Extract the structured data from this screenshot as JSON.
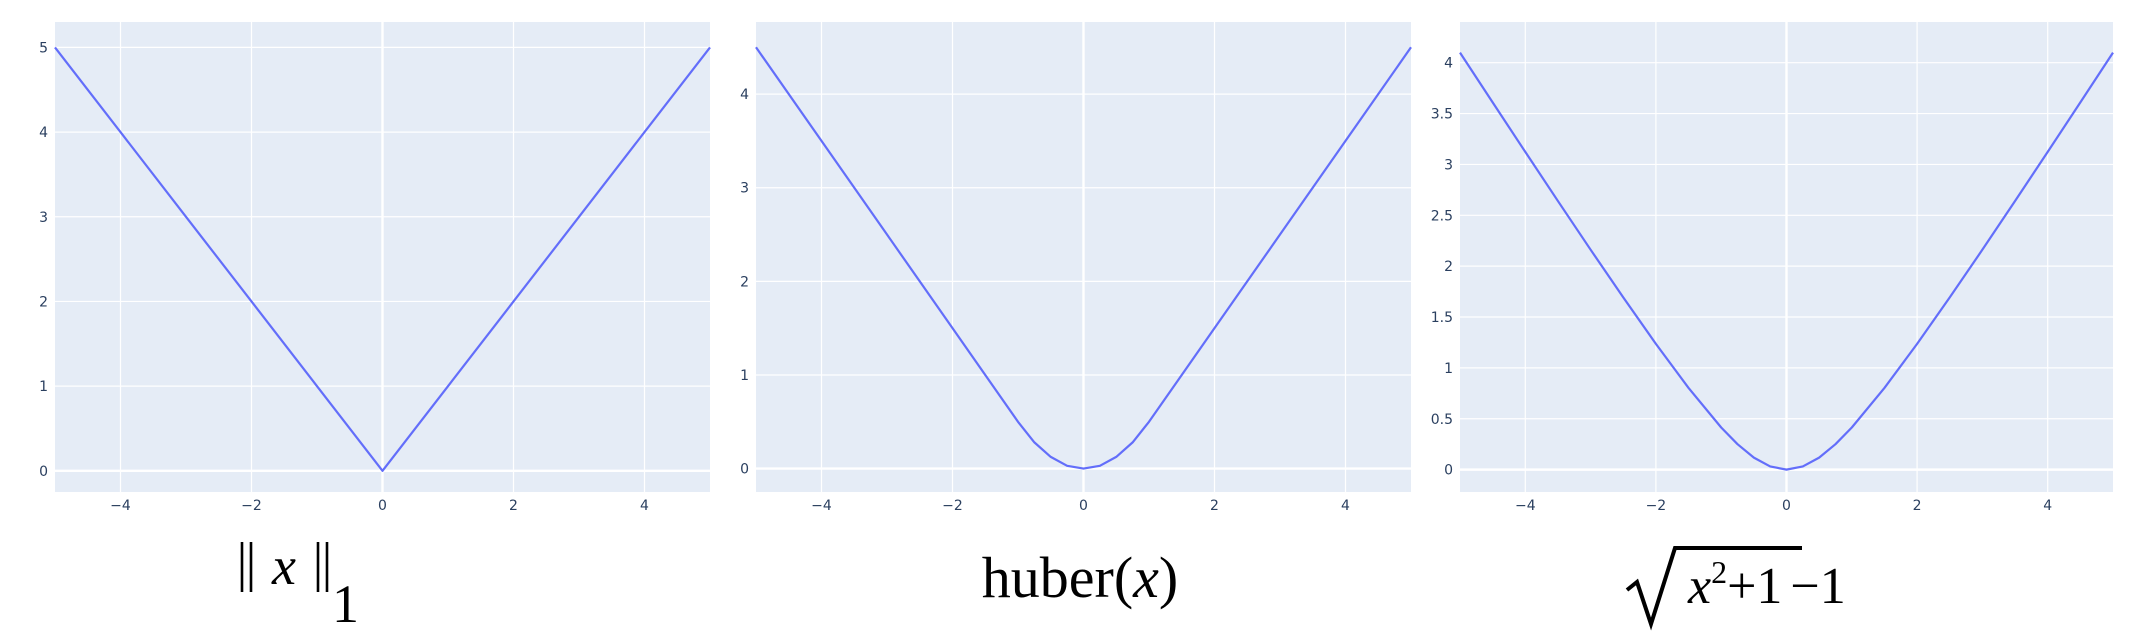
{
  "chart_data": [
    {
      "type": "line",
      "caption": "‖x‖₁",
      "xlim": [
        -5,
        5
      ],
      "ylim": [
        -0.25,
        5.3
      ],
      "xticks": [
        -4,
        -2,
        0,
        2,
        4
      ],
      "xtick_labels": [
        "−4",
        "−2",
        "0",
        "2",
        "4"
      ],
      "yticks": [
        0,
        1,
        2,
        3,
        4,
        5
      ],
      "ytick_labels": [
        "0",
        "1",
        "2",
        "3",
        "4",
        "5"
      ],
      "grid": true,
      "line_color": "#636efa",
      "background_color": "#e5ecf6",
      "x": [
        -5,
        -4,
        -3,
        -2,
        -1,
        0,
        1,
        2,
        3,
        4,
        5
      ],
      "y": [
        5,
        4,
        3,
        2,
        1,
        0,
        1,
        2,
        3,
        4,
        5
      ]
    },
    {
      "type": "line",
      "caption_parts": [
        "huber(",
        "x",
        ")"
      ],
      "xlim": [
        -5,
        5
      ],
      "ylim": [
        -0.25,
        4.77
      ],
      "xticks": [
        -4,
        -2,
        0,
        2,
        4
      ],
      "xtick_labels": [
        "−4",
        "−2",
        "0",
        "2",
        "4"
      ],
      "yticks": [
        0,
        1,
        2,
        3,
        4
      ],
      "ytick_labels": [
        "0",
        "1",
        "2",
        "3",
        "4"
      ],
      "grid": true,
      "line_color": "#636efa",
      "background_color": "#e5ecf6",
      "x": [
        -5,
        -4,
        -3,
        -2,
        -1,
        -0.75,
        -0.5,
        -0.25,
        0,
        0.25,
        0.5,
        0.75,
        1,
        2,
        3,
        4,
        5
      ],
      "y": [
        4.5,
        3.5,
        2.5,
        1.5,
        0.5,
        0.28,
        0.125,
        0.03,
        0,
        0.03,
        0.125,
        0.28,
        0.5,
        1.5,
        2.5,
        3.5,
        4.5
      ]
    },
    {
      "type": "line",
      "caption_parts": [
        "x",
        "2",
        "+1",
        "−1"
      ],
      "xlim": [
        -5,
        5
      ],
      "ylim": [
        -0.22,
        4.4
      ],
      "xticks": [
        -4,
        -2,
        0,
        2,
        4
      ],
      "xtick_labels": [
        "−4",
        "−2",
        "0",
        "2",
        "4"
      ],
      "yticks": [
        0,
        0.5,
        1,
        1.5,
        2,
        2.5,
        3,
        3.5,
        4
      ],
      "ytick_labels": [
        "0",
        "0.5",
        "1",
        "1.5",
        "2",
        "2.5",
        "3",
        "3.5",
        "4"
      ],
      "grid": true,
      "line_color": "#636efa",
      "background_color": "#e5ecf6",
      "x": [
        -5,
        -4.5,
        -4,
        -3.5,
        -3,
        -2.5,
        -2,
        -1.5,
        -1,
        -0.75,
        -0.5,
        -0.25,
        0,
        0.25,
        0.5,
        0.75,
        1,
        1.5,
        2,
        2.5,
        3,
        3.5,
        4,
        4.5,
        5
      ],
      "y": [
        4.099,
        3.61,
        3.123,
        2.64,
        2.162,
        1.693,
        1.236,
        0.803,
        0.414,
        0.25,
        0.118,
        0.031,
        0,
        0.031,
        0.118,
        0.25,
        0.414,
        0.803,
        1.236,
        1.693,
        2.162,
        2.64,
        3.123,
        3.61,
        4.099
      ]
    }
  ]
}
